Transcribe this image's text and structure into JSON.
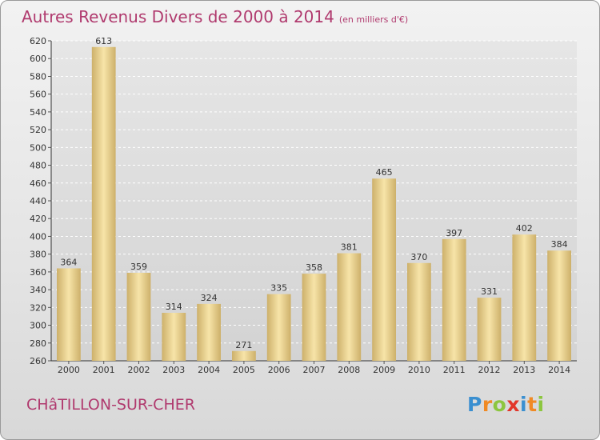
{
  "header": {
    "title": "Autres Revenus Divers de 2000 à 2014",
    "subtitle": "(en milliers d'€)"
  },
  "footer": {
    "city": "CHâTILLON-SUR-CHER",
    "logo_letters": [
      "P",
      "r",
      "o",
      "x",
      "i",
      "t",
      "i"
    ],
    "logo_colors": [
      "#3a8fd0",
      "#f08a24",
      "#8cc63f",
      "#e2362a",
      "#3a8fd0",
      "#f08a24",
      "#8cc63f"
    ]
  },
  "colors": {
    "title": "#b03a6e",
    "bar_light": "#f7e4a8",
    "bar_dark": "#cdb06a"
  },
  "chart_data": {
    "type": "bar",
    "title": "Autres Revenus Divers de 2000 à 2014",
    "subtitle": "(en milliers d'€)",
    "xlabel": "",
    "ylabel": "",
    "categories": [
      "2000",
      "2001",
      "2002",
      "2003",
      "2004",
      "2005",
      "2006",
      "2007",
      "2008",
      "2009",
      "2010",
      "2011",
      "2012",
      "2013",
      "2014"
    ],
    "values": [
      364,
      613,
      359,
      314,
      324,
      271,
      335,
      358,
      381,
      465,
      370,
      397,
      331,
      402,
      384
    ],
    "ylim": [
      260,
      620
    ],
    "yticks": [
      260,
      280,
      300,
      320,
      340,
      360,
      380,
      400,
      420,
      440,
      460,
      480,
      500,
      520,
      540,
      560,
      580,
      600,
      620
    ],
    "grid": true,
    "data_labels": true
  }
}
